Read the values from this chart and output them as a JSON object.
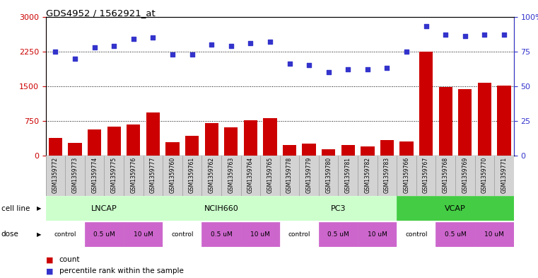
{
  "title": "GDS4952 / 1562921_at",
  "samples": [
    "GSM1359772",
    "GSM1359773",
    "GSM1359774",
    "GSM1359775",
    "GSM1359776",
    "GSM1359777",
    "GSM1359760",
    "GSM1359761",
    "GSM1359762",
    "GSM1359763",
    "GSM1359764",
    "GSM1359765",
    "GSM1359778",
    "GSM1359779",
    "GSM1359780",
    "GSM1359781",
    "GSM1359782",
    "GSM1359783",
    "GSM1359766",
    "GSM1359767",
    "GSM1359768",
    "GSM1359769",
    "GSM1359770",
    "GSM1359771"
  ],
  "counts": [
    380,
    270,
    560,
    620,
    670,
    930,
    295,
    430,
    710,
    610,
    760,
    810,
    225,
    255,
    135,
    235,
    195,
    330,
    310,
    2250,
    1480,
    1430,
    1580,
    1520
  ],
  "percentile": [
    75,
    70,
    78,
    79,
    84,
    85,
    73,
    73,
    80,
    79,
    81,
    82,
    66,
    65,
    60,
    62,
    62,
    63,
    75,
    93,
    87,
    86,
    87,
    87
  ],
  "bar_color": "#cc0000",
  "dot_color": "#3333cc",
  "left_ylim": [
    0,
    3000
  ],
  "right_ylim": [
    0,
    100
  ],
  "left_yticks": [
    0,
    750,
    1500,
    2250,
    3000
  ],
  "right_yticks": [
    0,
    25,
    50,
    75,
    100
  ],
  "right_yticklabels": [
    "0",
    "25",
    "50",
    "75",
    "100%"
  ],
  "hline_values": [
    750,
    1500,
    2250
  ],
  "legend_count_label": "count",
  "legend_pct_label": "percentile rank within the sample",
  "cell_line_label": "cell line",
  "dose_label": "dose",
  "cell_line_groups": [
    {
      "name": "LNCAP",
      "start": 0,
      "end": 6,
      "color": "#ccffcc"
    },
    {
      "name": "NCIH660",
      "start": 6,
      "end": 12,
      "color": "#ccffcc"
    },
    {
      "name": "PC3",
      "start": 12,
      "end": 18,
      "color": "#ccffcc"
    },
    {
      "name": "VCAP",
      "start": 18,
      "end": 24,
      "color": "#44cc44"
    }
  ],
  "dose_groups": [
    {
      "name": "control",
      "start": 0,
      "end": 2,
      "color": "#ffffff"
    },
    {
      "name": "0.5 uM",
      "start": 2,
      "end": 4,
      "color": "#cc66cc"
    },
    {
      "name": "10 uM",
      "start": 4,
      "end": 6,
      "color": "#cc66cc"
    },
    {
      "name": "control",
      "start": 6,
      "end": 8,
      "color": "#ffffff"
    },
    {
      "name": "0.5 uM",
      "start": 8,
      "end": 10,
      "color": "#cc66cc"
    },
    {
      "name": "10 uM",
      "start": 10,
      "end": 12,
      "color": "#cc66cc"
    },
    {
      "name": "control",
      "start": 12,
      "end": 14,
      "color": "#ffffff"
    },
    {
      "name": "0.5 uM",
      "start": 14,
      "end": 16,
      "color": "#cc66cc"
    },
    {
      "name": "10 uM",
      "start": 16,
      "end": 18,
      "color": "#cc66cc"
    },
    {
      "name": "control",
      "start": 18,
      "end": 20,
      "color": "#ffffff"
    },
    {
      "name": "0.5 uM",
      "start": 20,
      "end": 22,
      "color": "#cc66cc"
    },
    {
      "name": "10 uM",
      "start": 22,
      "end": 24,
      "color": "#cc66cc"
    }
  ]
}
